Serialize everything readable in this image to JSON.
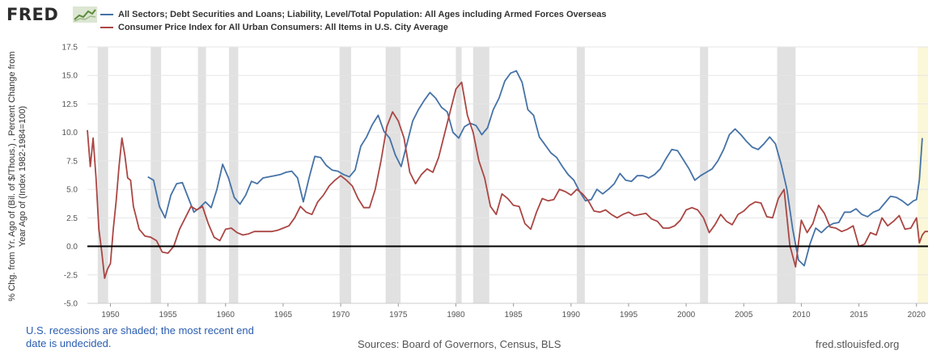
{
  "logo": {
    "text": "FRED",
    "icon": "line-chart-icon"
  },
  "colors": {
    "series1": "#4572a7",
    "series2": "#aa4643",
    "recession": "#e1e1e1",
    "undecided_recession": "#fbf7d9",
    "grid": "#e6e6e6",
    "zero_line": "#000000",
    "footnote": "#2a5db0"
  },
  "footer": {
    "note": "U.S. recessions are shaded; the most recent end date is undecided.",
    "sources": "Sources: Board of Governors, Census, BLS",
    "site": "fred.stlouisfed.org"
  },
  "chart_data": {
    "type": "line",
    "title": "",
    "ylabel": "% Chg. from Yr. Ago of (Bil. of $/Thous.) , Percent Change from Year Ago of (Index 1982-1984=100)",
    "xlabel": "",
    "ylim": [
      -5.0,
      17.5
    ],
    "xlim": [
      1948,
      2021
    ],
    "y_ticks": [
      "17.5",
      "15.0",
      "12.5",
      "10.0",
      "7.5",
      "5.0",
      "2.5",
      "0.0",
      "-2.5",
      "-5.0"
    ],
    "x_ticks": [
      "1950",
      "1955",
      "1960",
      "1965",
      "1970",
      "1975",
      "1980",
      "1985",
      "1990",
      "1995",
      "2000",
      "2005",
      "2010",
      "2015",
      "2020"
    ],
    "grid": "horizontal",
    "legend_position": "top-left",
    "recessions": [
      [
        1948.9,
        1949.8
      ],
      [
        1953.5,
        1954.4
      ],
      [
        1957.6,
        1958.3
      ],
      [
        1960.3,
        1961.1
      ],
      [
        1969.9,
        1970.9
      ],
      [
        1973.9,
        1975.2
      ],
      [
        1980.0,
        1980.5
      ],
      [
        1981.5,
        1982.9
      ],
      [
        1990.5,
        1991.2
      ],
      [
        2001.2,
        2001.9
      ],
      [
        2007.9,
        2009.5
      ]
    ],
    "undecided_recession": [
      2020.1,
      2021.0
    ],
    "series": [
      {
        "name": "All Sectors; Debt Securities and Loans; Liability, Level/Total Population: All Ages including Armed Forces Overseas",
        "x": [
          1953.25,
          1953.75,
          1954.25,
          1954.75,
          1955.25,
          1955.75,
          1956.25,
          1956.75,
          1957.25,
          1957.75,
          1958.25,
          1958.75,
          1959.25,
          1959.75,
          1960.25,
          1960.75,
          1961.25,
          1961.75,
          1962.25,
          1962.75,
          1963.25,
          1963.75,
          1964.25,
          1964.75,
          1965.25,
          1965.75,
          1966.25,
          1966.75,
          1967.25,
          1967.75,
          1968.25,
          1968.75,
          1969.25,
          1969.75,
          1970.25,
          1970.75,
          1971.25,
          1971.75,
          1972.25,
          1972.75,
          1973.25,
          1973.75,
          1974.25,
          1974.75,
          1975.25,
          1975.75,
          1976.25,
          1976.75,
          1977.25,
          1977.75,
          1978.25,
          1978.75,
          1979.25,
          1979.75,
          1980.25,
          1980.75,
          1981.25,
          1981.75,
          1982.25,
          1982.75,
          1983.25,
          1983.75,
          1984.25,
          1984.75,
          1985.25,
          1985.75,
          1986.25,
          1986.75,
          1987.25,
          1987.75,
          1988.25,
          1988.75,
          1989.25,
          1989.75,
          1990.25,
          1990.75,
          1991.25,
          1991.75,
          1992.25,
          1992.75,
          1993.25,
          1993.75,
          1994.25,
          1994.75,
          1995.25,
          1995.75,
          1996.25,
          1996.75,
          1997.25,
          1997.75,
          1998.25,
          1998.75,
          1999.25,
          1999.75,
          2000.25,
          2000.75,
          2001.25,
          2001.75,
          2002.25,
          2002.75,
          2003.25,
          2003.75,
          2004.25,
          2004.75,
          2005.25,
          2005.75,
          2006.25,
          2006.75,
          2007.25,
          2007.75,
          2008.25,
          2008.75,
          2009.25,
          2009.75,
          2010.25,
          2010.75,
          2011.25,
          2011.75,
          2012.25,
          2012.75,
          2013.25,
          2013.75,
          2014.25,
          2014.75,
          2015.25,
          2015.75,
          2016.25,
          2016.75,
          2017.25,
          2017.75,
          2018.25,
          2018.75,
          2019.25,
          2019.75,
          2020.0,
          2020.25,
          2020.5
        ],
        "y": [
          6.1,
          5.8,
          3.5,
          2.5,
          4.5,
          5.5,
          5.6,
          4.3,
          3.0,
          3.4,
          3.9,
          3.4,
          5.0,
          7.2,
          6.0,
          4.3,
          3.7,
          4.5,
          5.7,
          5.5,
          6.0,
          6.1,
          6.2,
          6.3,
          6.5,
          6.6,
          6.0,
          3.9,
          6.0,
          7.9,
          7.8,
          7.1,
          6.7,
          6.6,
          6.3,
          6.1,
          6.7,
          8.8,
          9.6,
          10.7,
          11.5,
          10.1,
          9.5,
          8.0,
          7.0,
          9.0,
          11.0,
          12.0,
          12.8,
          13.5,
          13.0,
          12.2,
          11.8,
          10.0,
          9.5,
          10.5,
          10.8,
          10.6,
          9.8,
          10.4,
          12.0,
          13.0,
          14.5,
          15.2,
          15.4,
          14.4,
          12.0,
          11.5,
          9.6,
          8.9,
          8.2,
          7.8,
          7.0,
          6.3,
          5.8,
          4.8,
          4.0,
          4.1,
          5.0,
          4.6,
          5.0,
          5.5,
          6.4,
          5.8,
          5.7,
          6.2,
          6.2,
          6.0,
          6.3,
          6.8,
          7.7,
          8.5,
          8.4,
          7.6,
          6.8,
          5.8,
          6.2,
          6.5,
          6.8,
          7.5,
          8.5,
          9.8,
          10.3,
          9.8,
          9.2,
          8.7,
          8.5,
          9.0,
          9.6,
          9.0,
          7.2,
          5.0,
          1.5,
          -1.2,
          -1.7,
          0.2,
          1.6,
          1.2,
          1.7,
          2.0,
          2.1,
          3.0,
          3.0,
          3.3,
          2.8,
          2.6,
          3.0,
          3.2,
          3.8,
          4.4,
          4.3,
          4.0,
          3.6,
          4.0,
          4.1,
          5.8,
          9.5
        ]
      },
      {
        "name": "Consumer Price Index for All Urban Consumers: All Items in U.S. City Average",
        "x": [
          1948.0,
          1948.25,
          1948.5,
          1948.75,
          1949.0,
          1949.25,
          1949.5,
          1949.75,
          1950.0,
          1950.25,
          1950.5,
          1950.75,
          1951.0,
          1951.25,
          1951.5,
          1951.75,
          1952.0,
          1952.25,
          1952.5,
          1952.75,
          1953.0,
          1953.5,
          1954.0,
          1954.5,
          1955.0,
          1955.5,
          1956.0,
          1956.5,
          1957.0,
          1957.5,
          1958.0,
          1958.5,
          1959.0,
          1959.5,
          1960.0,
          1960.5,
          1961.0,
          1961.5,
          1962.0,
          1962.5,
          1963.0,
          1963.5,
          1964.0,
          1964.5,
          1965.0,
          1965.5,
          1966.0,
          1966.5,
          1967.0,
          1967.5,
          1968.0,
          1968.5,
          1969.0,
          1969.5,
          1970.0,
          1970.5,
          1971.0,
          1971.5,
          1972.0,
          1972.5,
          1973.0,
          1973.5,
          1974.0,
          1974.5,
          1975.0,
          1975.5,
          1976.0,
          1976.5,
          1977.0,
          1977.5,
          1978.0,
          1978.5,
          1979.0,
          1979.5,
          1980.0,
          1980.5,
          1981.0,
          1981.5,
          1982.0,
          1982.5,
          1983.0,
          1983.5,
          1984.0,
          1984.5,
          1985.0,
          1985.5,
          1986.0,
          1986.5,
          1987.0,
          1987.5,
          1988.0,
          1988.5,
          1989.0,
          1989.5,
          1990.0,
          1990.5,
          1991.0,
          1991.5,
          1992.0,
          1992.5,
          1993.0,
          1993.5,
          1994.0,
          1994.5,
          1995.0,
          1995.5,
          1996.0,
          1996.5,
          1997.0,
          1997.5,
          1998.0,
          1998.5,
          1999.0,
          1999.5,
          2000.0,
          2000.5,
          2001.0,
          2001.5,
          2002.0,
          2002.5,
          2003.0,
          2003.5,
          2004.0,
          2004.5,
          2005.0,
          2005.5,
          2006.0,
          2006.5,
          2007.0,
          2007.5,
          2008.0,
          2008.5,
          2009.0,
          2009.5,
          2010.0,
          2010.5,
          2011.0,
          2011.5,
          2012.0,
          2012.5,
          2013.0,
          2013.5,
          2014.0,
          2014.5,
          2015.0,
          2015.5,
          2016.0,
          2016.5,
          2017.0,
          2017.5,
          2018.0,
          2018.5,
          2019.0,
          2019.5,
          2020.0,
          2020.25,
          2020.5,
          2020.75,
          2021.0
        ],
        "y": [
          10.2,
          7.0,
          9.5,
          6.0,
          1.5,
          -0.5,
          -2.8,
          -2.0,
          -1.5,
          1.5,
          4.0,
          7.0,
          9.5,
          8.0,
          6.0,
          5.8,
          3.5,
          2.5,
          1.5,
          1.2,
          0.9,
          0.8,
          0.5,
          -0.5,
          -0.6,
          0.0,
          1.5,
          2.5,
          3.5,
          3.2,
          3.5,
          2.0,
          0.8,
          0.5,
          1.5,
          1.6,
          1.2,
          1.0,
          1.1,
          1.3,
          1.3,
          1.3,
          1.3,
          1.4,
          1.6,
          1.8,
          2.5,
          3.5,
          3.0,
          2.8,
          3.9,
          4.5,
          5.3,
          5.8,
          6.2,
          5.8,
          5.3,
          4.2,
          3.4,
          3.4,
          5.0,
          7.5,
          10.5,
          11.8,
          11.0,
          9.5,
          6.5,
          5.5,
          6.3,
          6.8,
          6.5,
          7.8,
          9.8,
          11.8,
          13.8,
          14.4,
          11.5,
          10.0,
          7.5,
          6.0,
          3.5,
          2.8,
          4.6,
          4.2,
          3.6,
          3.5,
          2.0,
          1.5,
          3.0,
          4.2,
          4.0,
          4.1,
          5.0,
          4.8,
          4.5,
          5.0,
          4.6,
          4.0,
          3.1,
          3.0,
          3.2,
          2.8,
          2.5,
          2.8,
          3.0,
          2.7,
          2.8,
          2.9,
          2.4,
          2.2,
          1.6,
          1.6,
          1.8,
          2.3,
          3.2,
          3.4,
          3.2,
          2.5,
          1.2,
          1.9,
          2.8,
          2.2,
          1.9,
          2.8,
          3.1,
          3.6,
          3.9,
          3.8,
          2.6,
          2.5,
          4.2,
          5.0,
          0.1,
          -1.8,
          2.3,
          1.2,
          2.0,
          3.6,
          2.9,
          1.7,
          1.6,
          1.3,
          1.5,
          1.8,
          0.0,
          0.2,
          1.2,
          1.0,
          2.5,
          1.8,
          2.2,
          2.7,
          1.5,
          1.6,
          2.5,
          0.3,
          1.0,
          1.3,
          1.3
        ]
      }
    ]
  }
}
